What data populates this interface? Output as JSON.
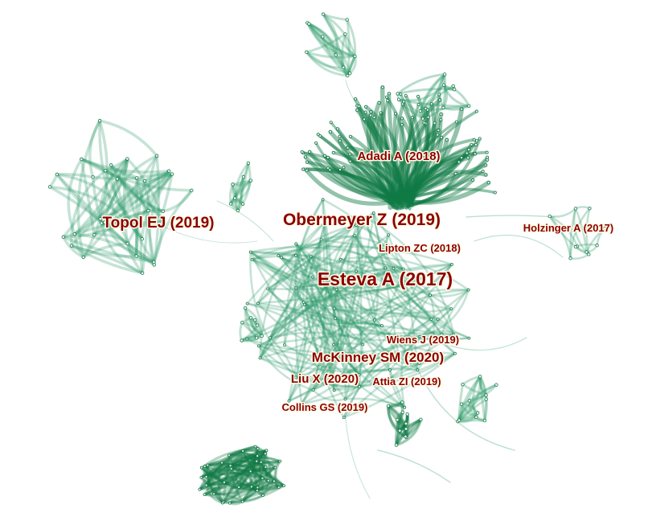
{
  "colors": {
    "background": "#ffffff",
    "edge": "#2e9a6a",
    "edge_dark": "#0f7a45",
    "node": "#1f7a4f",
    "label_text": "#8b0000",
    "label_halo": "#fffbe6"
  },
  "network": {
    "labels": [
      "Topol EJ (2019)",
      "Obermeyer Z (2019)",
      "Adadi A (2018)",
      "Holzinger A (2017)",
      "Lipton ZC (2018)",
      "Esteva A (2017)",
      "Wiens J (2019)",
      "McKinney SM (2020)",
      "Liu X (2020)",
      "Attia ZI (2019)",
      "Collins GS (2019)"
    ]
  }
}
